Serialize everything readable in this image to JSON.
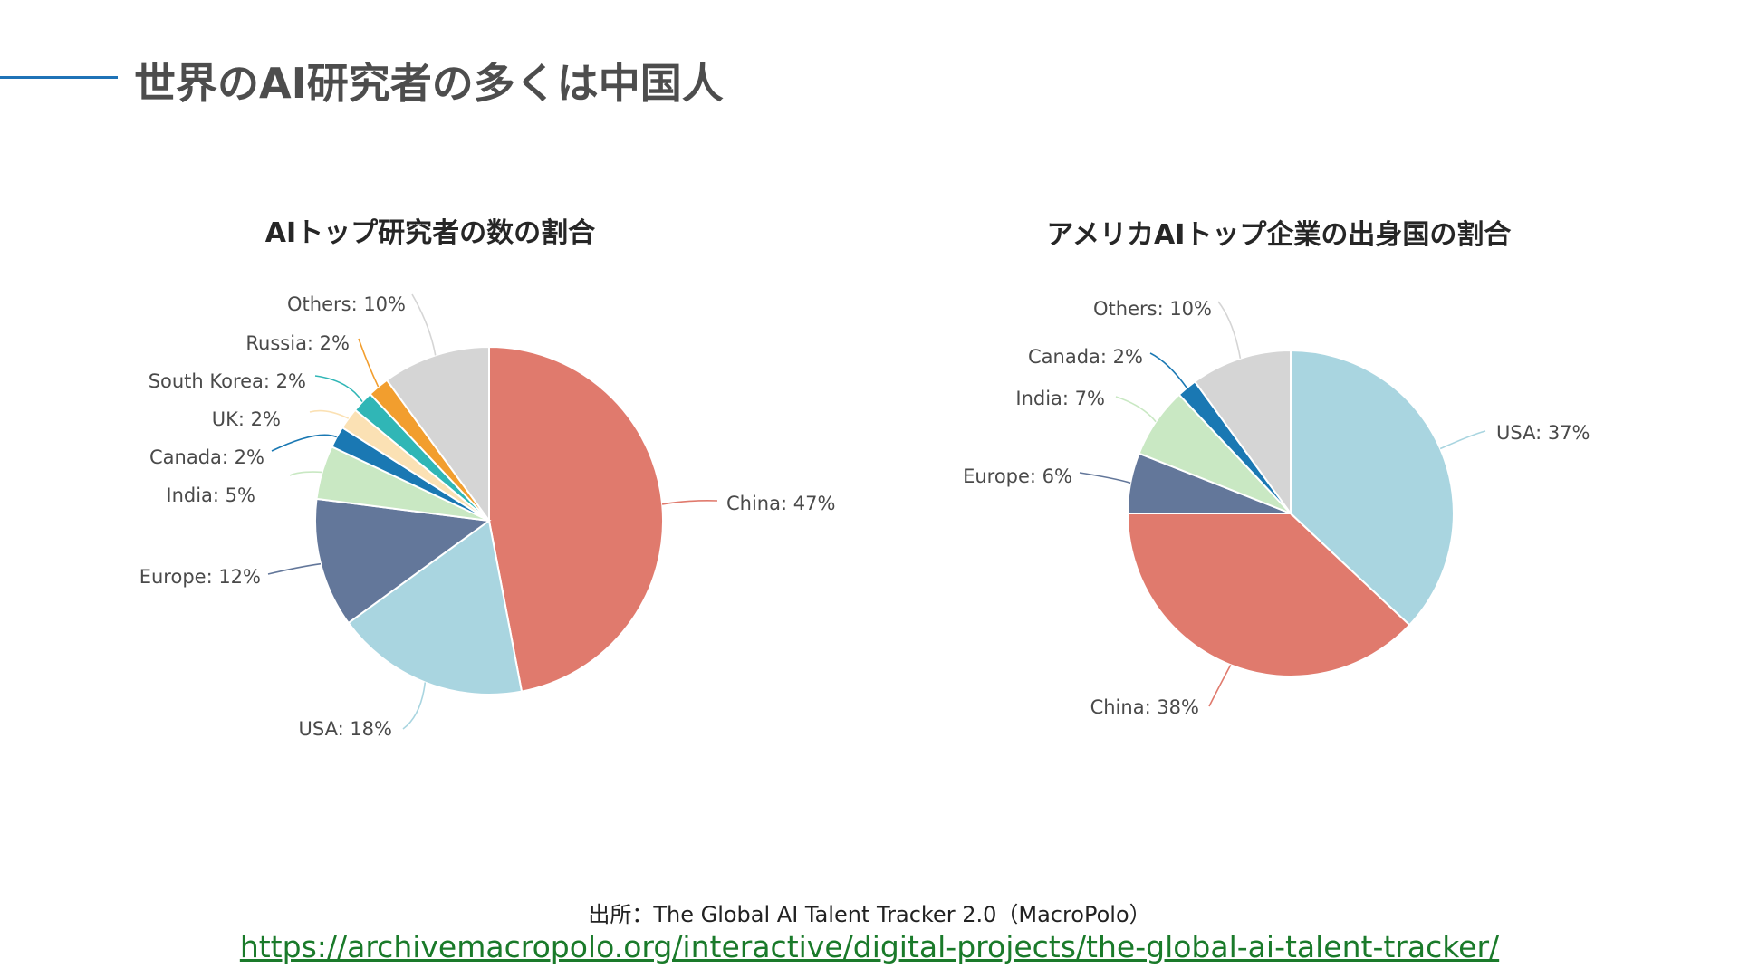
{
  "page": {
    "title": "世界のAI研究者の多くは中国人",
    "source_label": "出所：The Global AI Talent Tracker 2.0（MacroPolo）",
    "source_url": "https://archivemacropolo.org/interactive/digital-projects/the-global-ai-talent-tracker/"
  },
  "chart_data": [
    {
      "type": "pie",
      "title": "AIトップ研究者の数の割合",
      "slices": [
        {
          "label": "China: 47%",
          "value": 47,
          "color": "#e07a6d"
        },
        {
          "label": "USA: 18%",
          "value": 18,
          "color": "#a9d5e0"
        },
        {
          "label": "Europe: 12%",
          "value": 12,
          "color": "#63779a"
        },
        {
          "label": "India: 5%",
          "value": 5,
          "color": "#c9e8c3"
        },
        {
          "label": "Canada: 2%",
          "value": 2,
          "color": "#1a78b3"
        },
        {
          "label": "UK: 2%",
          "value": 2,
          "color": "#fbe1b4"
        },
        {
          "label": "South Korea: 2%",
          "value": 2,
          "color": "#30b6b6"
        },
        {
          "label": "Russia: 2%",
          "value": 2,
          "color": "#f29e2e"
        },
        {
          "label": "Others: 10%",
          "value": 10,
          "color": "#d5d5d5"
        }
      ]
    },
    {
      "type": "pie",
      "title": "アメリカAIトップ企業の出身国の割合",
      "slices": [
        {
          "label": "USA: 37%",
          "value": 37,
          "color": "#a9d5e0"
        },
        {
          "label": "China: 38%",
          "value": 38,
          "color": "#e07a6d"
        },
        {
          "label": "Europe: 6%",
          "value": 6,
          "color": "#63779a"
        },
        {
          "label": "India: 7%",
          "value": 7,
          "color": "#c9e8c3"
        },
        {
          "label": "Canada: 2%",
          "value": 2,
          "color": "#1a78b3"
        },
        {
          "label": "Others: 10%",
          "value": 10,
          "color": "#d5d5d5"
        }
      ]
    }
  ]
}
